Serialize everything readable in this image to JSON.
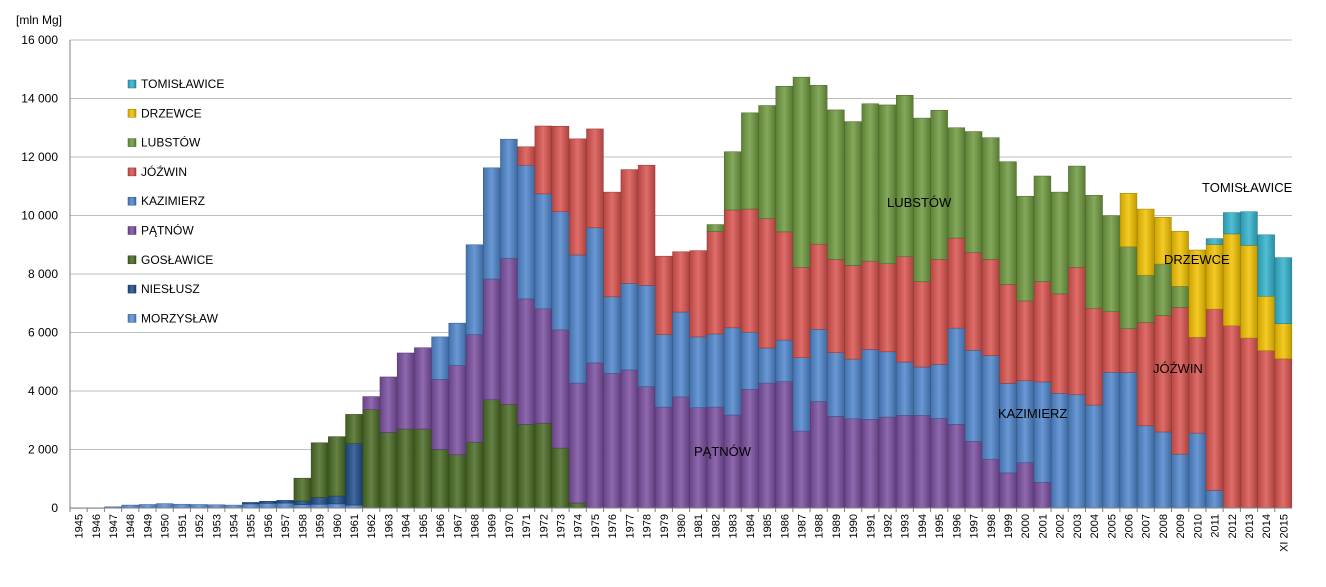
{
  "chart_data": {
    "type": "bar",
    "stacked": true,
    "unit_label": "[mln Mg]",
    "ylim": [
      0,
      16000
    ],
    "yticks": [
      "0",
      "2 000",
      "4 000",
      "6 000",
      "8 000",
      "10 000",
      "12 000",
      "14 000",
      "16 000"
    ],
    "grid": "horizontal",
    "legend_position": "top-left",
    "categories": [
      "1945",
      "1946",
      "1947",
      "1948",
      "1949",
      "1950",
      "1951",
      "1952",
      "1953",
      "1954",
      "1955",
      "1956",
      "1957",
      "1958",
      "1959",
      "1960",
      "1961",
      "1962",
      "1963",
      "1964",
      "1965",
      "1966",
      "1967",
      "1968",
      "1969",
      "1970",
      "1971",
      "1972",
      "1973",
      "1974",
      "1975",
      "1976",
      "1977",
      "1978",
      "1979",
      "1980",
      "1981",
      "1982",
      "1983",
      "1984",
      "1985",
      "1986",
      "1987",
      "1988",
      "1989",
      "1990",
      "1991",
      "1992",
      "1993",
      "1994",
      "1995",
      "1996",
      "1997",
      "1998",
      "1999",
      "2000",
      "2001",
      "2002",
      "2003",
      "2004",
      "2005",
      "2006",
      "2007",
      "2008",
      "2009",
      "2010",
      "2011",
      "2012",
      "2013",
      "2014",
      "XI 2015"
    ],
    "series": [
      {
        "name": "MORZYSŁAW",
        "color": "#5b8fd6",
        "values": [
          5,
          5,
          40,
          100,
          120,
          150,
          130,
          120,
          110,
          100,
          140,
          160,
          170,
          120,
          130,
          140,
          100,
          0,
          0,
          0,
          0,
          0,
          0,
          0,
          0,
          0,
          0,
          0,
          0,
          0,
          0,
          0,
          0,
          0,
          0,
          0,
          0,
          0,
          0,
          0,
          0,
          0,
          0,
          0,
          0,
          0,
          0,
          0,
          0,
          0,
          0,
          0,
          0,
          0,
          0,
          0,
          0,
          0,
          0,
          0,
          0,
          0,
          0,
          0,
          0,
          0,
          0,
          0,
          0,
          0,
          0
        ]
      },
      {
        "name": "NIESŁUSZ",
        "color": "#1f4e8c",
        "values": [
          0,
          0,
          0,
          0,
          0,
          0,
          0,
          0,
          0,
          0,
          50,
          70,
          90,
          120,
          230,
          270,
          2100,
          0,
          0,
          0,
          0,
          0,
          0,
          0,
          0,
          0,
          0,
          0,
          0,
          0,
          0,
          0,
          0,
          0,
          0,
          0,
          0,
          0,
          0,
          0,
          0,
          0,
          0,
          0,
          0,
          0,
          0,
          0,
          0,
          0,
          0,
          0,
          0,
          0,
          0,
          0,
          0,
          0,
          0,
          0,
          0,
          0,
          0,
          0,
          0,
          0,
          0,
          0,
          0,
          0,
          0
        ]
      },
      {
        "name": "GOSŁAWICE",
        "color": "#4a6b24",
        "values": [
          0,
          0,
          0,
          0,
          0,
          0,
          0,
          0,
          0,
          0,
          0,
          0,
          0,
          780,
          1870,
          2030,
          1000,
          3360,
          2580,
          2700,
          2700,
          2000,
          1820,
          2250,
          3700,
          3540,
          2860,
          2900,
          2050,
          170,
          0,
          0,
          0,
          0,
          0,
          0,
          0,
          0,
          0,
          0,
          0,
          0,
          0,
          0,
          0,
          0,
          0,
          0,
          0,
          0,
          0,
          0,
          0,
          0,
          0,
          0,
          0,
          0,
          0,
          0,
          0,
          0,
          0,
          0,
          0,
          0,
          0,
          0,
          0,
          0,
          0
        ]
      },
      {
        "name": "PĄTNÓW",
        "color": "#7b4fa0",
        "values": [
          0,
          0,
          0,
          0,
          0,
          0,
          0,
          0,
          0,
          0,
          0,
          0,
          0,
          0,
          0,
          0,
          0,
          450,
          1900,
          2600,
          2780,
          2400,
          3050,
          3680,
          4130,
          4990,
          4290,
          3910,
          4040,
          4100,
          4960,
          4600,
          4720,
          4150,
          3450,
          3800,
          3430,
          3450,
          3180,
          4060,
          4270,
          4320,
          2630,
          3640,
          3130,
          3050,
          3030,
          3110,
          3170,
          3170,
          3060,
          2860,
          2280,
          1670,
          1200,
          1550,
          880,
          0,
          0,
          0,
          0,
          0,
          0,
          0,
          0,
          0,
          0,
          0,
          0,
          0,
          0
        ]
      },
      {
        "name": "KAZIMIERZ",
        "color": "#4f86cc",
        "values": [
          0,
          0,
          0,
          0,
          0,
          0,
          0,
          0,
          0,
          0,
          0,
          0,
          0,
          0,
          0,
          0,
          0,
          0,
          0,
          0,
          0,
          1450,
          1450,
          3070,
          3800,
          4080,
          4570,
          3930,
          4040,
          4380,
          4620,
          2620,
          2960,
          3460,
          2480,
          2900,
          2420,
          2500,
          2980,
          1950,
          1200,
          1420,
          2510,
          2470,
          2180,
          2040,
          2390,
          2230,
          1820,
          1650,
          1850,
          3290,
          3110,
          3540,
          3060,
          2800,
          3430,
          3920,
          3870,
          3520,
          4640,
          4630,
          2810,
          2600,
          1840,
          2560,
          600,
          0,
          0,
          0,
          0
        ]
      },
      {
        "name": "JÓŹWIN",
        "color": "#d9534f",
        "values": [
          0,
          0,
          0,
          0,
          0,
          0,
          0,
          0,
          0,
          0,
          0,
          0,
          0,
          0,
          0,
          0,
          0,
          0,
          0,
          0,
          0,
          0,
          0,
          0,
          0,
          0,
          630,
          2320,
          2920,
          3970,
          3380,
          3580,
          3890,
          4110,
          2680,
          2060,
          2950,
          3500,
          4030,
          4210,
          4420,
          3700,
          3090,
          2910,
          3190,
          3200,
          3020,
          3010,
          3600,
          2920,
          3590,
          3080,
          3340,
          3290,
          3380,
          2730,
          3430,
          3400,
          4360,
          3310,
          2070,
          1500,
          3530,
          3980,
          5020,
          3280,
          6200,
          6230,
          5810,
          5380,
          5100
        ]
      },
      {
        "name": "LUBSTÓW",
        "color": "#6e9a3f",
        "values": [
          0,
          0,
          0,
          0,
          0,
          0,
          0,
          0,
          0,
          0,
          0,
          0,
          0,
          0,
          0,
          0,
          0,
          0,
          0,
          0,
          0,
          0,
          0,
          0,
          0,
          0,
          0,
          0,
          0,
          0,
          0,
          0,
          0,
          0,
          0,
          0,
          0,
          240,
          1990,
          3290,
          3870,
          4980,
          6500,
          5430,
          5110,
          4920,
          5380,
          5430,
          5520,
          5590,
          5100,
          3770,
          4140,
          4160,
          4200,
          3580,
          3610,
          3480,
          3460,
          3860,
          3280,
          2800,
          1620,
          1760,
          720,
          0,
          0,
          0,
          0,
          0,
          0
        ]
      },
      {
        "name": "DRZEWCE",
        "color": "#f2c200",
        "values": [
          0,
          0,
          0,
          0,
          0,
          0,
          0,
          0,
          0,
          0,
          0,
          0,
          0,
          0,
          0,
          0,
          0,
          0,
          0,
          0,
          0,
          0,
          0,
          0,
          0,
          0,
          0,
          0,
          0,
          0,
          0,
          0,
          0,
          0,
          0,
          0,
          0,
          0,
          0,
          0,
          0,
          0,
          0,
          0,
          0,
          0,
          0,
          0,
          0,
          0,
          0,
          0,
          0,
          0,
          0,
          0,
          0,
          0,
          0,
          0,
          0,
          1830,
          2260,
          1600,
          1880,
          2980,
          2210,
          3140,
          3170,
          1860,
          1200
        ]
      },
      {
        "name": "TOMISŁAWICE",
        "color": "#33b3cc",
        "values": [
          0,
          0,
          0,
          0,
          0,
          0,
          0,
          0,
          0,
          0,
          0,
          0,
          0,
          0,
          0,
          0,
          0,
          0,
          0,
          0,
          0,
          0,
          0,
          0,
          0,
          0,
          0,
          0,
          0,
          0,
          0,
          0,
          0,
          0,
          0,
          0,
          0,
          0,
          0,
          0,
          0,
          0,
          0,
          0,
          0,
          0,
          0,
          0,
          0,
          0,
          0,
          0,
          0,
          0,
          0,
          0,
          0,
          0,
          0,
          0,
          0,
          0,
          0,
          0,
          0,
          0,
          200,
          730,
          1150,
          2100,
          2260
        ]
      }
    ],
    "annotations": [
      "PĄTNÓW",
      "LUBSTÓW",
      "KAZIMIERZ",
      "JÓŹWIN",
      "DRZEWCE",
      "TOMISŁAWICE"
    ]
  }
}
